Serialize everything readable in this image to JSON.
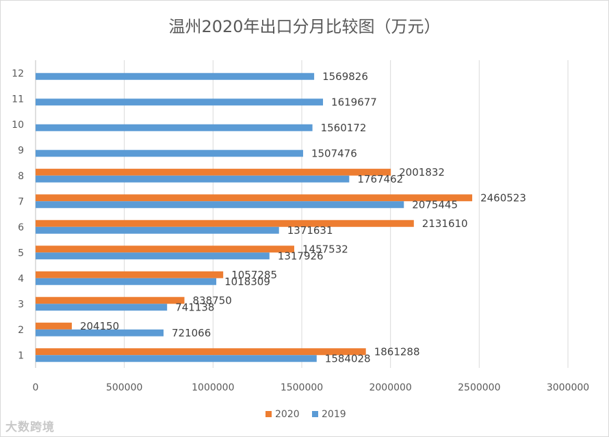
{
  "chart_data": {
    "type": "bar",
    "orientation": "horizontal",
    "title": "温州2020年出口分月比较图（万元）",
    "categories": [
      "1",
      "2",
      "3",
      "4",
      "5",
      "6",
      "7",
      "8",
      "9",
      "10",
      "11",
      "12"
    ],
    "series": [
      {
        "name": "2020",
        "color": "#ed7d31",
        "values": [
          1861288,
          204150,
          838750,
          1057285,
          1457532,
          2131610,
          2460523,
          2001832,
          null,
          null,
          null,
          null
        ]
      },
      {
        "name": "2019",
        "color": "#5b9bd5",
        "values": [
          1584028,
          721066,
          741138,
          1018309,
          1317926,
          1371631,
          2075445,
          1767462,
          1507476,
          1560172,
          1619677,
          1569826
        ]
      }
    ],
    "xlim": [
      0,
      3000000
    ],
    "xticks": [
      0,
      500000,
      1000000,
      1500000,
      2000000,
      2500000,
      3000000
    ],
    "legend": {
      "position": "bottom",
      "entries": [
        "2020",
        "2019"
      ]
    },
    "grid": "vertical"
  },
  "watermark": "大数跨境"
}
